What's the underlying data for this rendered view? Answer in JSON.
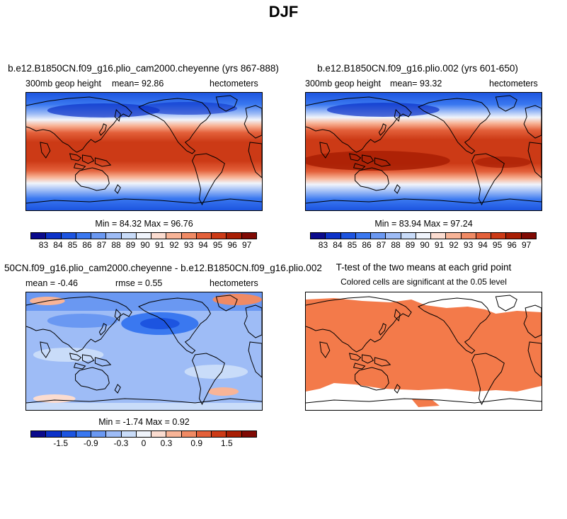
{
  "main_title": "DJF",
  "colors": {
    "abs_scale": [
      "#0a0a8c",
      "#0c32c8",
      "#1c54e0",
      "#3a78f0",
      "#6a98f2",
      "#9ebcf6",
      "#c9dcf9",
      "#f0f4fb",
      "#fbdcd0",
      "#f8b497",
      "#f08a64",
      "#e3603a",
      "#cc3a16",
      "#a81e04",
      "#800a04"
    ],
    "diff_scale": [
      "#0a0a8c",
      "#0c32c8",
      "#1c54e0",
      "#3a78f0",
      "#6a98f2",
      "#9ebcf6",
      "#c9dcf9",
      "#f0f4fb",
      "#fbdcd0",
      "#f8b497",
      "#f08a64",
      "#e3603a",
      "#cc3a16",
      "#a81e04",
      "#800a04"
    ],
    "ttest_fill": "#f37a4a"
  },
  "panels": {
    "top_left": {
      "title": "b.e12.B1850CN.f09_g16.plio_cam2000.cheyenne (yrs 867-888)",
      "variable": "300mb geop height",
      "stat_text": "mean=  92.86",
      "units": "hectometers",
      "minmax_text": "Min =  84.32 Max =  96.76",
      "colorbar_labels": [
        "83",
        "84",
        "85",
        "86",
        "87",
        "88",
        "89",
        "90",
        "91",
        "92",
        "93",
        "94",
        "95",
        "96",
        "97"
      ]
    },
    "top_right": {
      "title": "b.e12.B1850CN.f09_g16.plio.002 (yrs 601-650)",
      "variable": "300mb geop height",
      "stat_text": "mean=  93.32",
      "units": "hectometers",
      "minmax_text": "Min =  83.94 Max =  97.24",
      "colorbar_labels": [
        "83",
        "84",
        "85",
        "86",
        "87",
        "88",
        "89",
        "90",
        "91",
        "92",
        "93",
        "94",
        "95",
        "96",
        "97"
      ]
    },
    "bottom_left": {
      "title": "50CN.f09_g16.plio_cam2000.cheyenne - b.e12.B1850CN.f09_g16.plio.002",
      "mean_text": "mean =  -0.46",
      "rmse_text": "rmse =   0.55",
      "units": "hectometers",
      "minmax_text": "Min =  -1.74 Max =   0.92",
      "colorbar_labels": [
        "-1.5",
        "-0.9",
        "-0.3",
        "0",
        "0.3",
        "0.9",
        "1.5"
      ]
    },
    "bottom_right": {
      "title": "T-test of the two means at each grid point",
      "subtitle": "Colored cells are significant at the 0.05 level"
    }
  }
}
